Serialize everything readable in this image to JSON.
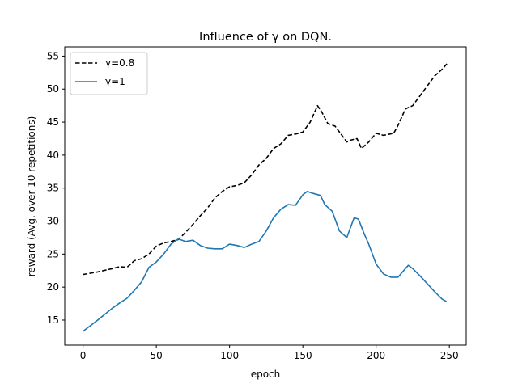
{
  "chart_data": {
    "type": "line",
    "title": "Influence of γ on DQN.",
    "xlabel": "epoch",
    "ylabel": "reward (Avg. over 10 repetitions)",
    "xlim": [
      -12.5,
      261.5
    ],
    "ylim": [
      11.2,
      56.4
    ],
    "xticks": [
      0,
      50,
      100,
      150,
      200,
      250
    ],
    "yticks": [
      15,
      20,
      25,
      30,
      35,
      40,
      45,
      50,
      55
    ],
    "grid": false,
    "legend_position": "upper-left",
    "series": [
      {
        "name": "γ=0.8",
        "color": "#000000",
        "dash": "dashed",
        "points": [
          [
            0,
            21.9
          ],
          [
            10,
            22.3
          ],
          [
            20,
            22.8
          ],
          [
            25,
            23.1
          ],
          [
            30,
            23.0
          ],
          [
            35,
            24.0
          ],
          [
            40,
            24.3
          ],
          [
            45,
            25.0
          ],
          [
            50,
            26.2
          ],
          [
            55,
            26.7
          ],
          [
            60,
            26.9
          ],
          [
            65,
            27.2
          ],
          [
            70,
            28.3
          ],
          [
            75,
            29.5
          ],
          [
            80,
            30.8
          ],
          [
            85,
            32.0
          ],
          [
            90,
            33.5
          ],
          [
            95,
            34.5
          ],
          [
            100,
            35.2
          ],
          [
            105,
            35.4
          ],
          [
            110,
            35.8
          ],
          [
            115,
            37.0
          ],
          [
            120,
            38.5
          ],
          [
            125,
            39.5
          ],
          [
            130,
            41.0
          ],
          [
            135,
            41.7
          ],
          [
            140,
            43.0
          ],
          [
            145,
            43.2
          ],
          [
            150,
            43.5
          ],
          [
            155,
            45.0
          ],
          [
            160,
            47.5
          ],
          [
            163,
            46.5
          ],
          [
            167,
            44.8
          ],
          [
            172,
            44.4
          ],
          [
            175,
            43.5
          ],
          [
            180,
            42.0
          ],
          [
            183,
            42.3
          ],
          [
            187,
            42.5
          ],
          [
            190,
            41.0
          ],
          [
            195,
            42.0
          ],
          [
            200,
            43.3
          ],
          [
            205,
            43.0
          ],
          [
            212,
            43.3
          ],
          [
            215,
            44.5
          ],
          [
            220,
            47.0
          ],
          [
            225,
            47.5
          ],
          [
            230,
            49.0
          ],
          [
            235,
            50.5
          ],
          [
            240,
            52.0
          ],
          [
            245,
            53.0
          ],
          [
            249,
            54.0
          ]
        ]
      },
      {
        "name": "γ=1",
        "color": "#1f77b4",
        "dash": "solid",
        "points": [
          [
            0,
            13.3
          ],
          [
            10,
            15.0
          ],
          [
            20,
            16.8
          ],
          [
            25,
            17.6
          ],
          [
            30,
            18.3
          ],
          [
            35,
            19.5
          ],
          [
            40,
            20.8
          ],
          [
            45,
            23.0
          ],
          [
            50,
            23.8
          ],
          [
            55,
            25.0
          ],
          [
            60,
            26.5
          ],
          [
            65,
            27.3
          ],
          [
            70,
            26.9
          ],
          [
            75,
            27.1
          ],
          [
            80,
            26.3
          ],
          [
            85,
            25.9
          ],
          [
            90,
            25.8
          ],
          [
            95,
            25.8
          ],
          [
            100,
            26.5
          ],
          [
            105,
            26.3
          ],
          [
            110,
            26.0
          ],
          [
            115,
            26.5
          ],
          [
            120,
            26.9
          ],
          [
            125,
            28.5
          ],
          [
            130,
            30.5
          ],
          [
            135,
            31.8
          ],
          [
            140,
            32.5
          ],
          [
            145,
            32.4
          ],
          [
            150,
            34.0
          ],
          [
            153,
            34.5
          ],
          [
            157,
            34.2
          ],
          [
            162,
            33.9
          ],
          [
            165,
            32.5
          ],
          [
            170,
            31.5
          ],
          [
            175,
            28.5
          ],
          [
            180,
            27.5
          ],
          [
            185,
            30.5
          ],
          [
            188,
            30.3
          ],
          [
            192,
            28.0
          ],
          [
            195,
            26.5
          ],
          [
            200,
            23.5
          ],
          [
            205,
            22.0
          ],
          [
            210,
            21.5
          ],
          [
            215,
            21.5
          ],
          [
            220,
            22.8
          ],
          [
            222,
            23.3
          ],
          [
            225,
            22.8
          ],
          [
            230,
            21.7
          ],
          [
            235,
            20.5
          ],
          [
            240,
            19.3
          ],
          [
            245,
            18.2
          ],
          [
            248,
            17.8
          ]
        ]
      }
    ]
  }
}
